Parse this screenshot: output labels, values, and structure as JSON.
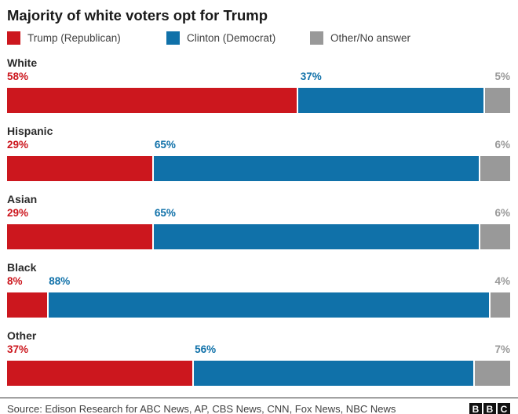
{
  "title": "Majority of white voters opt for Trump",
  "legend": {
    "items": [
      {
        "label": "Trump (Republican)",
        "color": "#cc171e"
      },
      {
        "label": "Clinton (Democrat)",
        "color": "#1071a9"
      },
      {
        "label": "Other/No answer",
        "color": "#999999"
      }
    ]
  },
  "chart_data": {
    "type": "bar",
    "stacked": true,
    "orientation": "horizontal",
    "title": "Majority of white voters opt for Trump",
    "categories": [
      "White",
      "Hispanic",
      "Asian",
      "Black",
      "Other"
    ],
    "series": [
      {
        "name": "Trump (Republican)",
        "color": "#cc171e",
        "values": [
          58,
          29,
          29,
          8,
          37
        ]
      },
      {
        "name": "Clinton (Democrat)",
        "color": "#1071a9",
        "values": [
          37,
          65,
          65,
          88,
          56
        ]
      },
      {
        "name": "Other/No answer",
        "color": "#999999",
        "values": [
          5,
          6,
          6,
          4,
          7
        ]
      }
    ],
    "value_suffix": "%",
    "xlim": [
      0,
      100
    ],
    "legend_position": "top",
    "grid": false,
    "value_labels": "above-segments"
  },
  "footer": {
    "source": "Source: Edison Research for ABC News, AP, CBS News, CNN, Fox News, NBC News",
    "logo_letters": [
      "B",
      "B",
      "C"
    ]
  }
}
